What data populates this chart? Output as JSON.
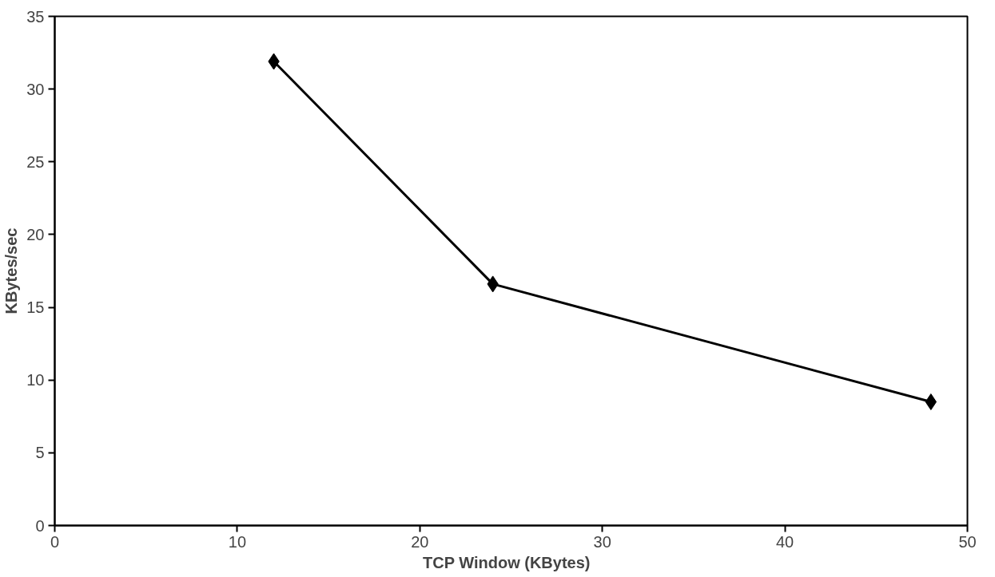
{
  "chart_data": {
    "type": "line",
    "xlabel": "TCP  Window  (KBytes)",
    "ylabel": "KBytes/sec",
    "x": [
      12,
      24,
      48
    ],
    "series": [
      {
        "color": "#000000",
        "values": [
          31.9,
          16.6,
          8.5
        ]
      }
    ],
    "xlim": [
      0,
      50
    ],
    "xticks": [
      0,
      10,
      20,
      30,
      40,
      50
    ],
    "ylim": [
      0,
      35
    ],
    "yticks": [
      0,
      5,
      10,
      15,
      20,
      25,
      30,
      35
    ],
    "grid": false,
    "marker": "diamond",
    "line_style": "solid"
  }
}
